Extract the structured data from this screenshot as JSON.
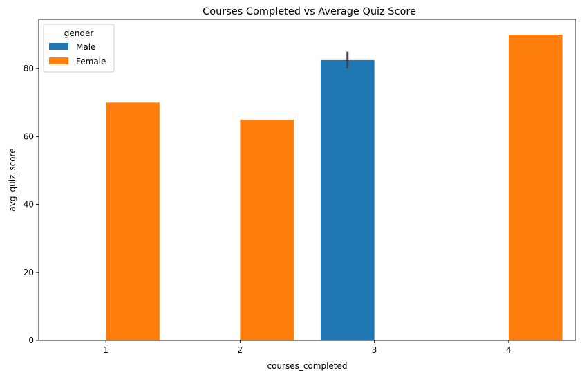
{
  "chart_data": {
    "type": "bar",
    "title": "Courses Completed vs Average Quiz Score",
    "xlabel": "courses_completed",
    "ylabel": "avg_quiz_score",
    "categories": [
      "1",
      "2",
      "3",
      "4"
    ],
    "ylim": [
      0,
      94.5
    ],
    "yticks": [
      0,
      20,
      40,
      60,
      80
    ],
    "grid": false,
    "legend": {
      "title": "gender",
      "placement": "top-left"
    },
    "series": [
      {
        "name": "Male",
        "color": "#1f77b4",
        "values": [
          null,
          null,
          82.5,
          null
        ],
        "error": [
          null,
          null,
          [
            80,
            85
          ],
          null
        ]
      },
      {
        "name": "Female",
        "color": "#ff7f0e",
        "values": [
          70,
          65,
          null,
          90
        ],
        "error": [
          null,
          null,
          null,
          null
        ]
      }
    ]
  }
}
